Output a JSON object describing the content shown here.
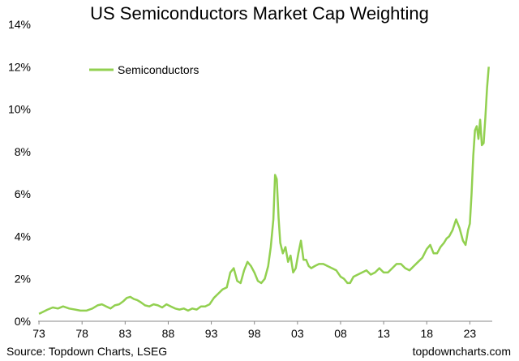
{
  "chart_data": {
    "type": "line",
    "title": "US Semiconductors Market Cap Weighting",
    "xlabel": "",
    "ylabel": "",
    "xlim": [
      1972.9,
      2025.6
    ],
    "ylim": [
      0,
      14
    ],
    "y_tick_labels": [
      "0%",
      "2%",
      "4%",
      "6%",
      "8%",
      "10%",
      "12%",
      "14%"
    ],
    "x_tick_labels": [
      "73",
      "78",
      "83",
      "88",
      "93",
      "98",
      "03",
      "08",
      "13",
      "18",
      "23"
    ],
    "grid": false,
    "legend_position": "top-left",
    "series": [
      {
        "name": "Semiconductors",
        "color": "#92d050",
        "x": [
          1973.0,
          1973.5,
          1974.0,
          1974.6,
          1975.2,
          1975.8,
          1976.5,
          1977.2,
          1977.8,
          1978.5,
          1979.2,
          1979.8,
          1980.3,
          1980.8,
          1981.3,
          1981.8,
          1982.3,
          1982.8,
          1983.2,
          1983.6,
          1984.0,
          1984.4,
          1984.8,
          1985.3,
          1985.8,
          1986.3,
          1986.8,
          1987.3,
          1987.8,
          1988.3,
          1988.8,
          1989.3,
          1989.8,
          1990.3,
          1990.8,
          1991.3,
          1991.8,
          1992.3,
          1992.8,
          1993.3,
          1993.8,
          1994.3,
          1994.8,
          1995.2,
          1995.6,
          1996.0,
          1996.4,
          1996.8,
          1997.2,
          1997.6,
          1998.0,
          1998.4,
          1998.8,
          1999.2,
          1999.6,
          1999.9,
          2000.2,
          2000.4,
          2000.6,
          2000.8,
          2001.0,
          2001.3,
          2001.6,
          2001.9,
          2002.2,
          2002.5,
          2002.8,
          2003.1,
          2003.4,
          2003.7,
          2004.0,
          2004.3,
          2004.6,
          2005.0,
          2005.5,
          2006.0,
          2006.5,
          2007.0,
          2007.5,
          2008.0,
          2008.4,
          2008.8,
          2009.1,
          2009.5,
          2010.0,
          2010.5,
          2011.0,
          2011.5,
          2012.0,
          2012.5,
          2013.0,
          2013.5,
          2014.0,
          2014.5,
          2015.0,
          2015.5,
          2016.0,
          2016.5,
          2017.0,
          2017.5,
          2018.0,
          2018.4,
          2018.8,
          2019.2,
          2019.6,
          2020.0,
          2020.3,
          2020.6,
          2021.0,
          2021.4,
          2021.8,
          2022.2,
          2022.5,
          2022.8,
          2023.0,
          2023.2,
          2023.4,
          2023.6,
          2023.8,
          2024.0,
          2024.2,
          2024.4,
          2024.6,
          2024.8,
          2025.0,
          2025.2
        ],
        "values": [
          0.35,
          0.45,
          0.55,
          0.65,
          0.6,
          0.7,
          0.6,
          0.55,
          0.5,
          0.5,
          0.6,
          0.75,
          0.8,
          0.7,
          0.6,
          0.75,
          0.8,
          0.95,
          1.1,
          1.15,
          1.05,
          1.0,
          0.9,
          0.75,
          0.7,
          0.8,
          0.75,
          0.65,
          0.8,
          0.7,
          0.6,
          0.55,
          0.6,
          0.5,
          0.6,
          0.55,
          0.7,
          0.7,
          0.8,
          1.1,
          1.3,
          1.5,
          1.6,
          2.3,
          2.5,
          1.9,
          1.8,
          2.4,
          2.8,
          2.6,
          2.3,
          1.9,
          1.8,
          2.0,
          2.6,
          3.5,
          4.8,
          6.9,
          6.7,
          4.9,
          3.7,
          3.2,
          3.5,
          2.8,
          3.1,
          2.3,
          2.5,
          3.2,
          3.8,
          2.9,
          2.9,
          2.6,
          2.5,
          2.6,
          2.7,
          2.7,
          2.6,
          2.5,
          2.4,
          2.1,
          2.0,
          1.8,
          1.8,
          2.1,
          2.2,
          2.3,
          2.4,
          2.2,
          2.3,
          2.5,
          2.3,
          2.3,
          2.5,
          2.7,
          2.7,
          2.5,
          2.4,
          2.6,
          2.8,
          3.0,
          3.4,
          3.6,
          3.2,
          3.2,
          3.5,
          3.7,
          3.9,
          4.0,
          4.3,
          4.8,
          4.4,
          3.8,
          3.6,
          4.3,
          4.6,
          6.0,
          7.8,
          9.0,
          9.2,
          8.6,
          9.5,
          8.3,
          8.4,
          9.6,
          11.0,
          12.0
        ]
      }
    ]
  },
  "source_note": "Source: Topdown Charts, LSEG",
  "brand_note": "topdowncharts.com"
}
